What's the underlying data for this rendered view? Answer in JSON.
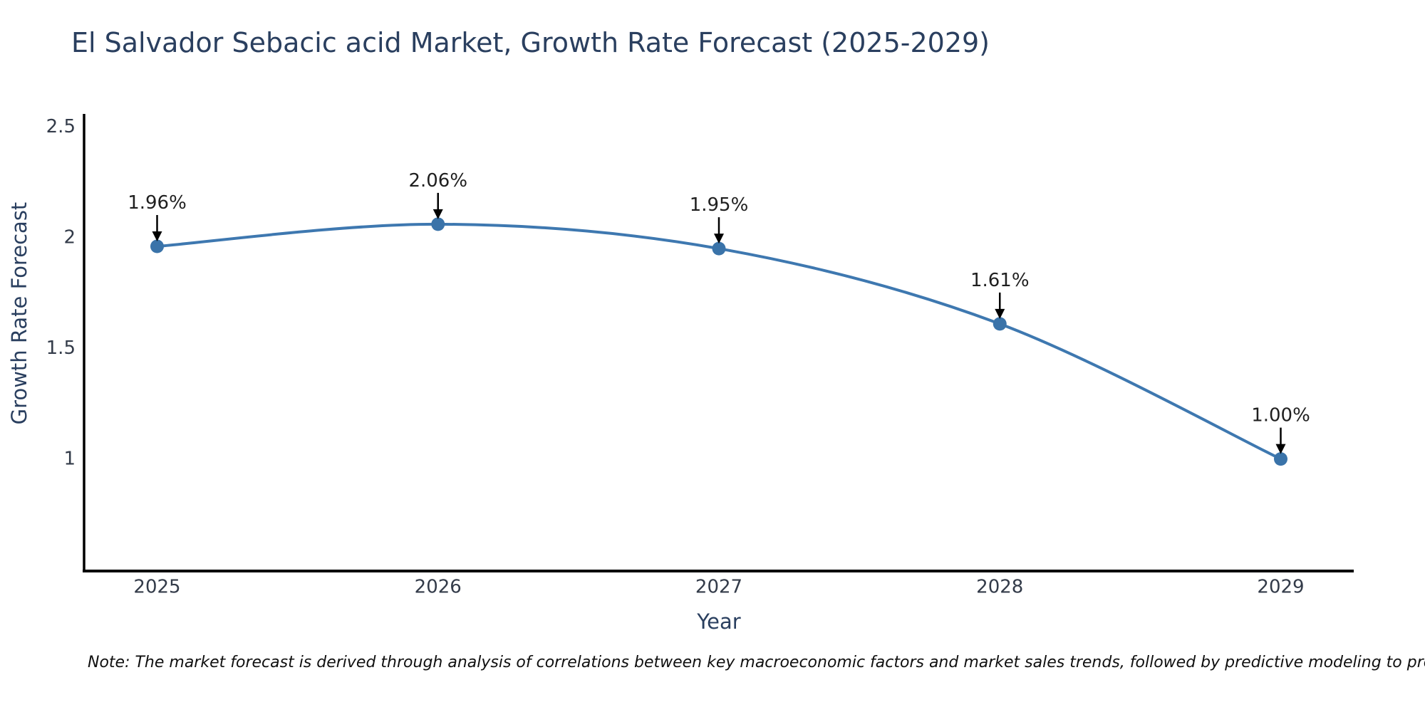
{
  "note": "Note: The market forecast is derived through analysis of correlations between key macroeconomic factors and market sales trends, followed by predictive modeling to project future sales",
  "chart_data": {
    "type": "line",
    "title": "El Salvador Sebacic acid Market, Growth Rate Forecast (2025-2029)",
    "xlabel": "Year",
    "ylabel": "Growth Rate Forecast",
    "x": [
      2025,
      2026,
      2027,
      2028,
      2029
    ],
    "y": [
      1.96,
      2.06,
      1.95,
      1.61,
      1.0
    ],
    "point_labels": [
      "1.96%",
      "2.06%",
      "1.95%",
      "1.61%",
      "1.00%"
    ],
    "x_tick_labels": [
      "2025",
      "2026",
      "2027",
      "2028",
      "2029"
    ],
    "y_tick_labels": [
      "2.5",
      "2",
      "1.5",
      "1"
    ],
    "y_tick_values": [
      2.5,
      2,
      1.5,
      1
    ],
    "xlim": [
      2024.74,
      2029.26
    ],
    "ylim": [
      0.494,
      2.558
    ],
    "line_shape": "spline",
    "grid": false,
    "legend": false,
    "marker_size": 19,
    "line_width": 4,
    "colors": {
      "line": "#3e78b0",
      "marker": "#3a73a9",
      "arrow": "#000000",
      "axis": "#000000",
      "title": "#2a3f5f",
      "tick": "#333b49",
      "annotation": "#1f1f1f",
      "note": "#101010",
      "background": "#ffffff"
    }
  }
}
